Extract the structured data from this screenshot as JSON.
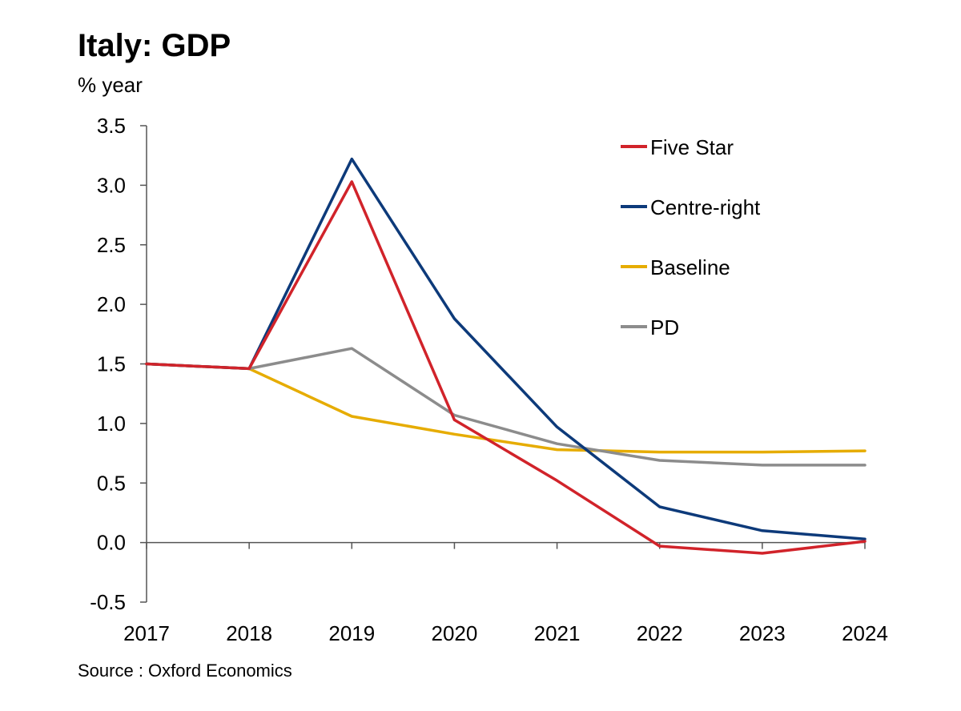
{
  "chart_data": {
    "type": "line",
    "title": "Italy: GDP",
    "subtitle": "% year",
    "source": "Source : Oxford Economics",
    "xlabel": "",
    "ylabel": "",
    "x": [
      "2017",
      "2018",
      "2019",
      "2020",
      "2021",
      "2022",
      "2023",
      "2024"
    ],
    "ylim": [
      -0.5,
      3.5
    ],
    "yticks": [
      "3.5",
      "3.0",
      "2.5",
      "2.0",
      "1.5",
      "1.0",
      "0.5",
      "0.0",
      "-0.5"
    ],
    "ytick_values": [
      3.5,
      3.0,
      2.5,
      2.0,
      1.5,
      1.0,
      0.5,
      0.0,
      -0.5
    ],
    "grid": false,
    "legend_position": "top-right",
    "series": [
      {
        "name": "Five Star",
        "color": "#d1232a",
        "values": [
          1.5,
          1.46,
          3.03,
          1.03,
          0.52,
          -0.03,
          -0.09,
          0.01
        ]
      },
      {
        "name": "Centre-right",
        "color": "#0d3a7a",
        "values": [
          1.5,
          1.46,
          3.22,
          1.88,
          0.97,
          0.3,
          0.1,
          0.03
        ]
      },
      {
        "name": "Baseline",
        "color": "#e6ac00",
        "values": [
          1.5,
          1.46,
          1.06,
          0.91,
          0.78,
          0.76,
          0.76,
          0.77
        ]
      },
      {
        "name": "PD",
        "color": "#8c8c8c",
        "values": [
          1.5,
          1.46,
          1.63,
          1.07,
          0.83,
          0.69,
          0.65,
          0.65
        ]
      }
    ]
  }
}
